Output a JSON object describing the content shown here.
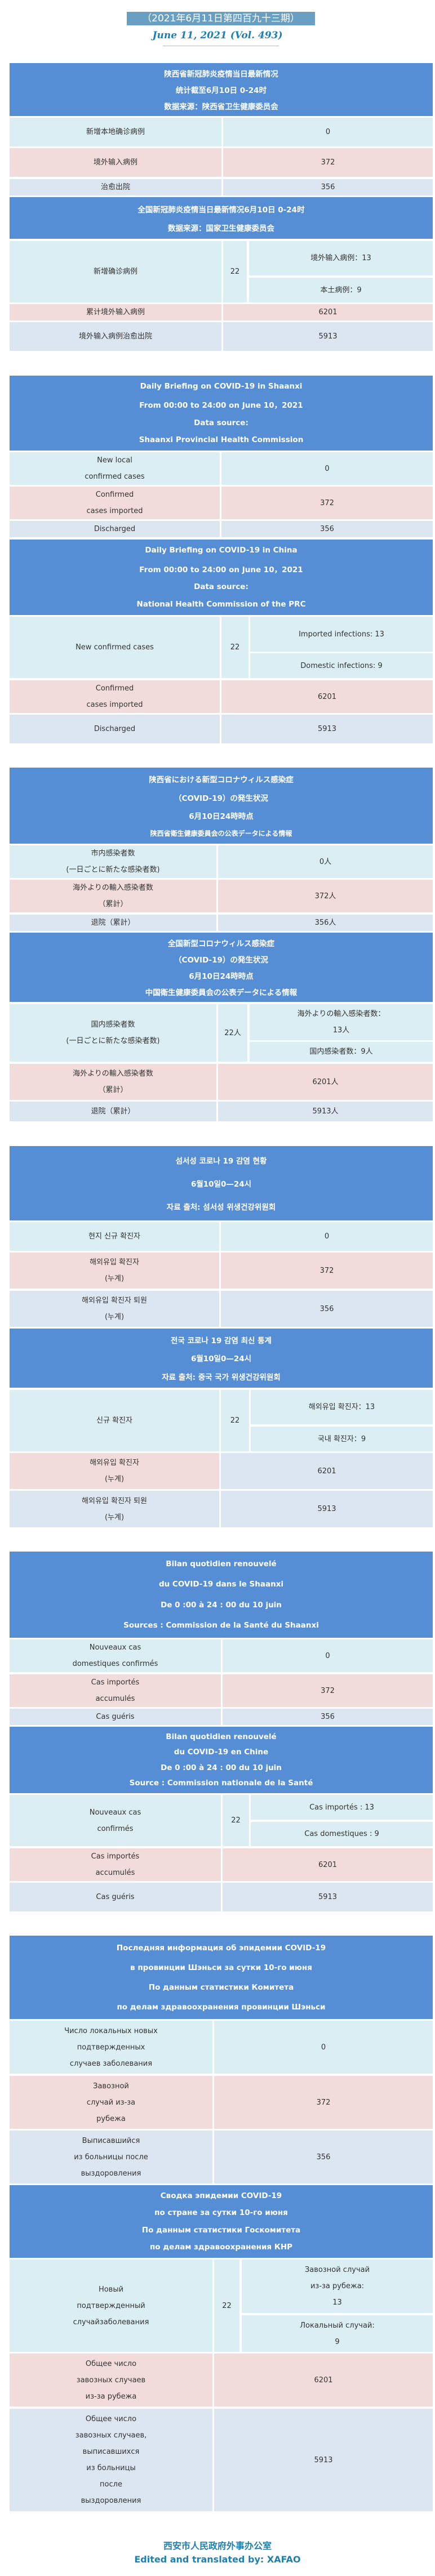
{
  "issue_label": "（2021年6月11日第四百九十三期）",
  "date_label": "June 11, 2021 (Vol. 493)",
  "colors": {
    "header": "#558ed5",
    "row_new": "#dbeef3",
    "row_imported": "#f2dcdb",
    "row_discharged": "#dce6f1",
    "accent_text": "#1f80b0"
  },
  "tables": [
    {
      "header": [
        "陕西省新冠肺炎疫情当日最新情况",
        "统计截至6月10日 0-24时",
        "数据来源：陕西省卫生健康委员会"
      ],
      "rows": [
        {
          "label": [
            "新增本地确诊病例"
          ],
          "value": "0"
        },
        {
          "label": [
            "境外输入病例"
          ],
          "value": "372"
        },
        {
          "label": [
            "治愈出院"
          ],
          "value": "356"
        }
      ]
    },
    {
      "header": [
        "全国新冠肺炎疫情当日最新情况6月10日 0-24时",
        "数据来源：国家卫生健康委员会"
      ],
      "rows": [
        {
          "label": [
            "新增确诊病例"
          ],
          "value": "22",
          "sub": [
            [
              "境外输入病例：13"
            ],
            [
              "本土病例：9"
            ]
          ]
        },
        {
          "label": [
            "累计境外输入病例"
          ],
          "value": "6201"
        },
        {
          "label": [
            "境外输入病例治愈出院"
          ],
          "value": "5913"
        }
      ]
    },
    {
      "header": [
        "Daily Briefing on COVID-19 in Shaanxi",
        "From 00:00 to 24:00 on June 10，2021",
        "Data source:",
        "Shaanxi Provincial Health Commission"
      ],
      "rows": [
        {
          "label": [
            "New local",
            "confirmed cases"
          ],
          "value": "0"
        },
        {
          "label": [
            "Confirmed",
            "cases imported"
          ],
          "value": "372"
        },
        {
          "label": [
            "Discharged"
          ],
          "value": "356"
        }
      ]
    },
    {
      "header": [
        "Daily Briefing on COVID-19 in China",
        "From 00:00 to 24:00 on  June 10，2021",
        "Data source:",
        "National Health Commission of the PRC"
      ],
      "rows": [
        {
          "label": [
            "New confirmed cases"
          ],
          "value": "22",
          "sub": [
            [
              "Imported infections: 13"
            ],
            [
              "Domestic infections: 9"
            ]
          ]
        },
        {
          "label": [
            "Confirmed",
            "cases imported"
          ],
          "value": "6201"
        },
        {
          "label": [
            "Discharged"
          ],
          "value": "5913"
        }
      ]
    },
    {
      "header": [
        "陕西省における新型コロナウィルス感染症",
        "（COVID-19）の発生状況",
        "6月10日24時時点",
        "陕西省衛生健康委員会の公表データによる情報"
      ],
      "rows": [
        {
          "label": [
            "市内感染者数",
            "(一日ごとに新たな感染者数)"
          ],
          "value": "0人"
        },
        {
          "label": [
            "海外よりの輸入感染者数",
            "（累計）"
          ],
          "value": "372人"
        },
        {
          "label": [
            "退院（累計）"
          ],
          "value": "356人"
        }
      ]
    },
    {
      "header": [
        "全国新型コロナウィルス感染症",
        "（COVID-19）の発生状況",
        "6月10日24時時点",
        "中国衛生健康委員会の公表データによる情報"
      ],
      "rows": [
        {
          "label": [
            "国内感染者数",
            "(一日ごとに新たな感染者数)"
          ],
          "value": "22人",
          "sub": [
            [
              "海外よりの輸入感染者数：",
              "13人"
            ],
            [
              "国内感染者数：9人"
            ]
          ]
        },
        {
          "label": [
            "海外よりの輸入感染者数",
            "（累計）"
          ],
          "value": "6201人"
        },
        {
          "label": [
            "退院（累計）"
          ],
          "value": "5913人"
        }
      ]
    },
    {
      "header": [
        "섬서성 코로나 19 감염 현황",
        "6월10일0—24시",
        "자료 출처: 섬서성 위생건강위원회"
      ],
      "rows": [
        {
          "label": [
            "현지 신규 확진자"
          ],
          "value": "0"
        },
        {
          "label": [
            "해외유입 확진자",
            "(누계)"
          ],
          "value": "372"
        },
        {
          "label": [
            "해외유입 확진자 퇴원",
            "(누계)"
          ],
          "value": "356"
        }
      ]
    },
    {
      "header": [
        "전국 코로나 19 감염 최신 통계",
        "6월10일0—24시",
        "자료 출처: 중국 국가 위생건강위원회"
      ],
      "rows": [
        {
          "label": [
            "신규 확진자"
          ],
          "value": "22",
          "sub": [
            [
              "해외유입 확진자：13"
            ],
            [
              "국내 확진자：9"
            ]
          ]
        },
        {
          "label": [
            "해외유입 확진자",
            "(누계)"
          ],
          "value": "6201"
        },
        {
          "label": [
            "해외유입 확진자 퇴원",
            "(누계)"
          ],
          "value": "5913"
        }
      ]
    },
    {
      "header": [
        "Bilan quotidien renouvelé",
        "du COVID-19 dans le Shaanxi",
        "De 0 :00 à 24 : 00 du 10 juin",
        "Sources : Commission de la Santé du Shaanxi"
      ],
      "rows": [
        {
          "label": [
            "Nouveaux cas",
            "domestiques confirmés"
          ],
          "value": "0"
        },
        {
          "label": [
            "Cas importés",
            "accumulés"
          ],
          "value": "372"
        },
        {
          "label": [
            "Cas guéris"
          ],
          "value": "356"
        }
      ]
    },
    {
      "header": [
        "Bilan quotidien renouvelé",
        "du COVID-19 en Chine",
        "De 0 :00 à 24 : 00 du 10 juin",
        "Source : Commission nationale de la Santé"
      ],
      "rows": [
        {
          "label": [
            "Nouveaux cas",
            "confirmés"
          ],
          "value": "22",
          "sub": [
            [
              "Cas importés : 13"
            ],
            [
              "Cas domestiques : 9"
            ]
          ]
        },
        {
          "label": [
            "Cas importés",
            "accumulés"
          ],
          "value": "6201"
        },
        {
          "label": [
            "Cas guéris"
          ],
          "value": "5913"
        }
      ]
    },
    {
      "header": [
        "Последняя информация об эпидемии COVID-19",
        "в провинции Шэньси за сутки 10-го  июня",
        "По данным статистики Комитета",
        "по делам здравоохранения провинции Шэньси"
      ],
      "rows": [
        {
          "label": [
            "Число локальных новых",
            "подтвержденных",
            "случаев заболевания"
          ],
          "value": "0"
        },
        {
          "label": [
            "Завозной",
            "случай из-за",
            "рубежа"
          ],
          "value": "372"
        },
        {
          "label": [
            "Выписавшийся",
            "из больницы после",
            "выздоровления"
          ],
          "value": "356"
        }
      ]
    },
    {
      "header": [
        "Сводка эпидемии COVID-19",
        "по стране за сутки  10-го  июня",
        "По данным статистики Госкомитета",
        "по делам здравоохранения КНР"
      ],
      "rows": [
        {
          "label": [
            "Новый",
            "подтвержденный",
            "случайзаболевания"
          ],
          "value": "22",
          "sub": [
            [
              "Завозной случай",
              "из-за рубежа:",
              "13"
            ],
            [
              "Локальный случай:",
              "9"
            ]
          ]
        },
        {
          "label": [
            "Общее число",
            "завозных случаев",
            "из-за рубежа"
          ],
          "value": "6201"
        },
        {
          "label": [
            "Общее число",
            "завозных случаев,",
            "выписавшихся",
            "из больницы",
            "после",
            "выздоровления"
          ],
          "value": "5913"
        }
      ]
    }
  ],
  "footer": {
    "org": "西安市人民政府外事办公室",
    "credit": "Edited and translated by: XAFAO"
  }
}
